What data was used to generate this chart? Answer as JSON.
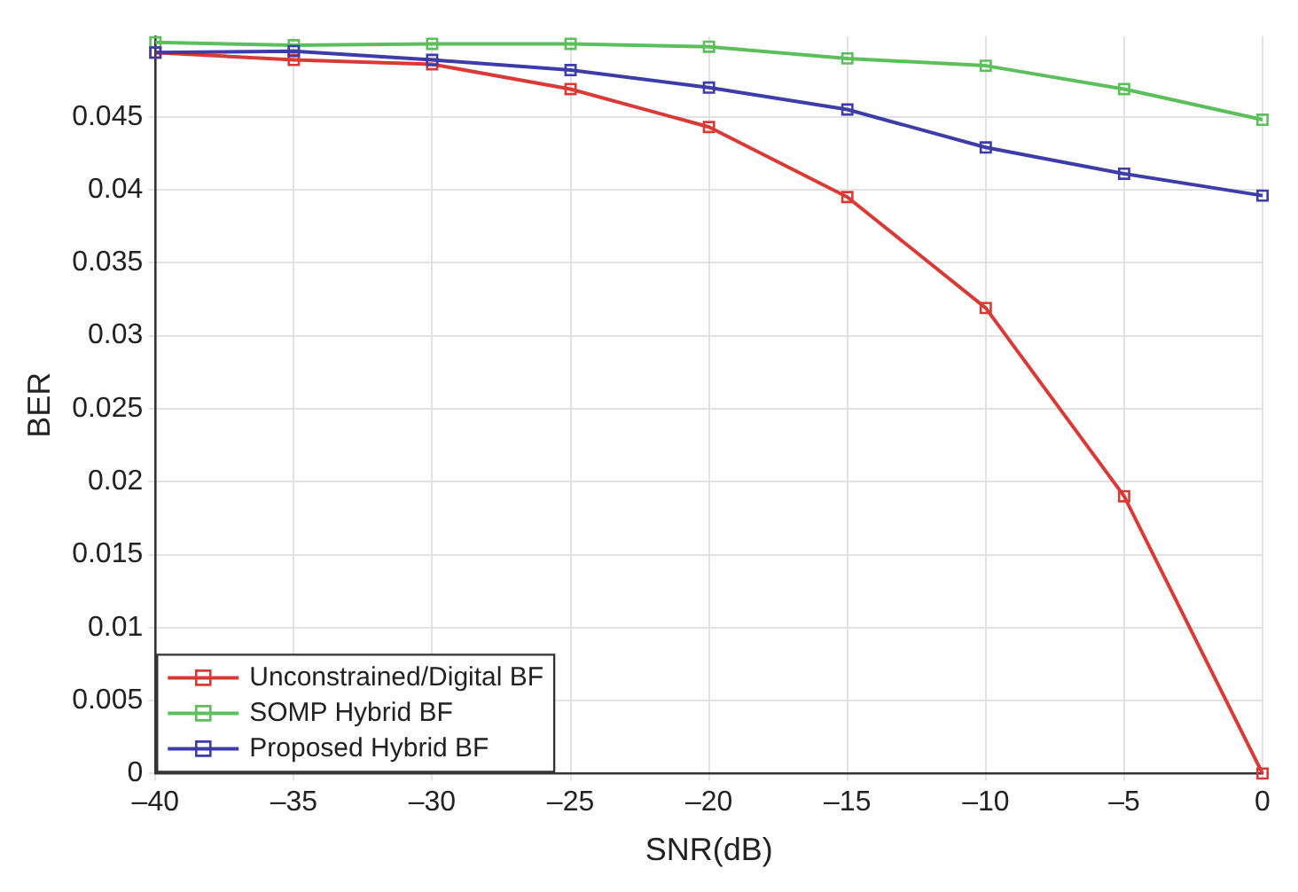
{
  "chart_data": {
    "type": "line",
    "xlabel": "SNR(dB)",
    "ylabel": "BER",
    "x": [
      -40,
      -35,
      -30,
      -25,
      -20,
      -15,
      -10,
      -5,
      0
    ],
    "series": [
      {
        "name": "Unconstrained/Digital BF",
        "color": "#d93a36",
        "values": [
          0.0494,
          0.0489,
          0.0486,
          0.0469,
          0.0443,
          0.0395,
          0.0319,
          0.019,
          0
        ]
      },
      {
        "name": "SOMP Hybrid BF",
        "color": "#5cbf5c",
        "values": [
          0.0501,
          0.0499,
          0.05,
          0.05,
          0.0498,
          0.049,
          0.0485,
          0.0469,
          0.0448
        ]
      },
      {
        "name": "Proposed Hybrid BF",
        "color": "#3d3ca8",
        "values": [
          0.0494,
          0.0495,
          0.0489,
          0.0482,
          0.047,
          0.0455,
          0.0429,
          0.0411,
          0.0396
        ]
      }
    ],
    "xlim": [
      -40,
      0
    ],
    "xticks": [
      {
        "value": -40,
        "label": "–40"
      },
      {
        "value": -35,
        "label": "–35"
      },
      {
        "value": -30,
        "label": "–30"
      },
      {
        "value": -25,
        "label": "–25"
      },
      {
        "value": -20,
        "label": "–20"
      },
      {
        "value": -15,
        "label": "–15"
      },
      {
        "value": -10,
        "label": "–10"
      },
      {
        "value": -5,
        "label": "–5"
      },
      0
    ],
    "ylim": [
      0,
      0.0505
    ],
    "yticks": [
      0,
      0.005,
      0.01,
      0.015,
      0.02,
      0.025,
      0.03,
      0.035,
      0.04,
      0.045
    ],
    "grid": true,
    "legend": "bottom left",
    "marker": "square",
    "line_style": "solid"
  }
}
